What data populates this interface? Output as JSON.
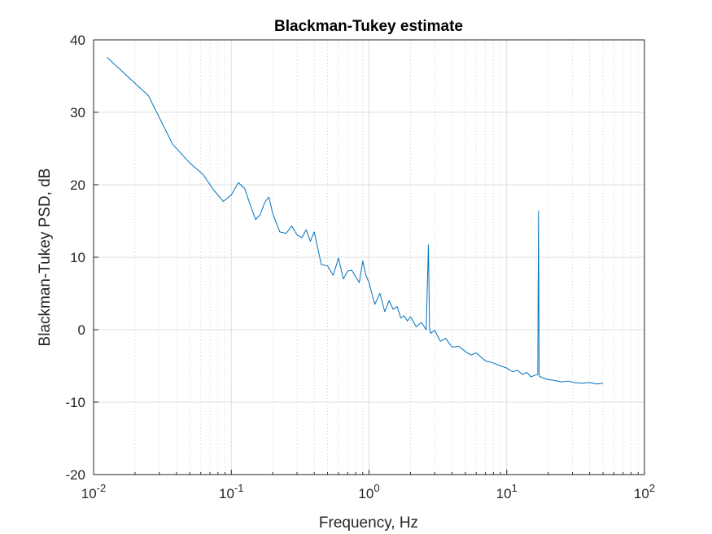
{
  "chart_data": {
    "type": "line",
    "title": "Blackman-Tukey estimate",
    "xlabel": "Frequency, Hz",
    "ylabel": "Blackman-Tukey PSD, dB",
    "xscale": "log",
    "xlim": [
      0.01,
      100
    ],
    "ylim": [
      -20,
      40
    ],
    "grid": "on (major and minor)",
    "line_color": "#0072BD",
    "x_ticks": [
      {
        "base": "10",
        "exp": "-2"
      },
      {
        "base": "10",
        "exp": "-1"
      },
      {
        "base": "10",
        "exp": "0"
      },
      {
        "base": "10",
        "exp": "1"
      },
      {
        "base": "10",
        "exp": "2"
      }
    ],
    "y_ticks": [
      "-20",
      "-10",
      "0",
      "10",
      "20",
      "30",
      "40"
    ],
    "series": [
      {
        "x": [
          0.0125,
          0.025,
          0.0375,
          0.05,
          0.0625,
          0.075,
          0.0875,
          0.1,
          0.1125,
          0.125,
          0.1375,
          0.15,
          0.1625,
          0.175,
          0.1875,
          0.2,
          0.225,
          0.25,
          0.275,
          0.3,
          0.325,
          0.35,
          0.375,
          0.4,
          0.45,
          0.5,
          0.55,
          0.6,
          0.65,
          0.7,
          0.75,
          0.8,
          0.85,
          0.9,
          0.95,
          1.0,
          1.1,
          1.2,
          1.3,
          1.4,
          1.5,
          1.6,
          1.7,
          1.8,
          1.9,
          2.0,
          2.2,
          2.4,
          2.6,
          2.7,
          2.75,
          2.8,
          3.0,
          3.3,
          3.6,
          4.0,
          4.5,
          5.0,
          5.5,
          6.0,
          7.0,
          8.0,
          9.0,
          10.0,
          11.0,
          12.0,
          13.0,
          14.0,
          15.0,
          16.0,
          16.8,
          17.0,
          17.2,
          18.0,
          20.0,
          22.0,
          25.0,
          28.0,
          31.0,
          35.0,
          40.0,
          45.0,
          50.0
        ],
        "y": [
          37.6,
          32.3,
          25.6,
          23.0,
          21.4,
          19.2,
          17.7,
          18.6,
          20.3,
          19.5,
          17.2,
          15.2,
          15.9,
          17.6,
          18.3,
          16.0,
          13.5,
          13.3,
          14.3,
          13.1,
          12.7,
          13.8,
          12.2,
          13.5,
          9.0,
          8.8,
          7.5,
          9.9,
          7.0,
          8.1,
          8.2,
          7.3,
          6.5,
          9.5,
          7.5,
          6.5,
          3.5,
          5.0,
          2.5,
          4.0,
          2.8,
          3.2,
          1.6,
          1.9,
          1.2,
          1.8,
          0.4,
          1.0,
          0.0,
          11.7,
          0.2,
          -0.5,
          -0.1,
          -1.6,
          -1.2,
          -2.4,
          -2.3,
          -3.0,
          -3.5,
          -3.2,
          -4.3,
          -4.6,
          -5.0,
          -5.3,
          -5.8,
          -5.6,
          -6.2,
          -5.9,
          -6.5,
          -6.3,
          -6.2,
          16.4,
          -6.4,
          -6.6,
          -6.9,
          -7.0,
          -7.2,
          -7.1,
          -7.3,
          -7.4,
          -7.3,
          -7.5,
          -7.4
        ]
      }
    ]
  }
}
